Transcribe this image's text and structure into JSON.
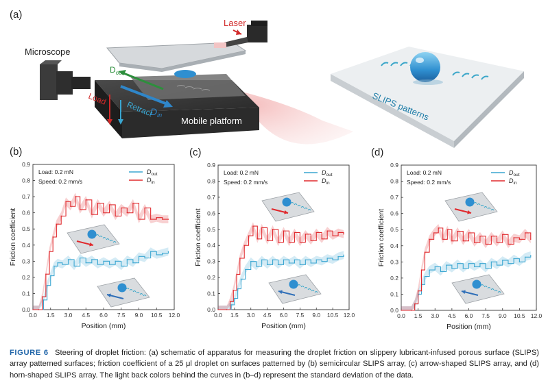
{
  "panel_a": {
    "label": "(a)",
    "microscope_label": "Microscope",
    "laser_label": "Laser",
    "dout_label": "D",
    "dout_sub": "out",
    "din_label": "D",
    "din_sub": "in",
    "load_label": "Load",
    "retract_label": "Retract",
    "platform_label": "Mobile platform",
    "slips_label": "SLIPS patterns"
  },
  "colors": {
    "out": "#3aa6d1",
    "in": "#e0282c",
    "caption_accent": "#1f64a8",
    "dout_arrow": "#2d8f3c"
  },
  "chart_data": [
    {
      "type": "line",
      "panel": "(b)",
      "xlabel": "Position (mm)",
      "ylabel": "Friction coefficient",
      "xlim": [
        0,
        12
      ],
      "ylim": [
        0,
        0.9
      ],
      "xticks": [
        "0.0",
        "1.5",
        "3.0",
        "4.5",
        "6.0",
        "7.5",
        "9.0",
        "10.5",
        "12.0"
      ],
      "yticks": [
        "0.0",
        "0.1",
        "0.2",
        "0.3",
        "0.4",
        "0.5",
        "0.6",
        "0.7",
        "0.8",
        "0.9"
      ],
      "annotation": [
        "Load: 0.2 mN",
        "Speed: 0.2 mm/s"
      ],
      "legend": [
        {
          "name": "D",
          "sub": "out",
          "color": "#3aa6d1"
        },
        {
          "name": "D",
          "sub": "in",
          "color": "#e0282c"
        }
      ],
      "series": [
        {
          "key": "out",
          "x": [
            0,
            0.5,
            0.9,
            1.2,
            1.5,
            1.8,
            2.1,
            2.5,
            3.0,
            3.5,
            4.0,
            4.5,
            5.0,
            5.5,
            6.0,
            6.5,
            7.0,
            7.5,
            8.0,
            8.5,
            9.0,
            9.5,
            10.0,
            10.5,
            11.0,
            11.5
          ],
          "y": [
            0,
            0,
            0.06,
            0.15,
            0.21,
            0.27,
            0.29,
            0.28,
            0.31,
            0.27,
            0.32,
            0.29,
            0.31,
            0.28,
            0.3,
            0.28,
            0.3,
            0.27,
            0.31,
            0.29,
            0.33,
            0.32,
            0.36,
            0.34,
            0.35,
            0.36
          ]
        },
        {
          "key": "in",
          "x": [
            0,
            0.5,
            0.8,
            1.1,
            1.4,
            1.7,
            2.0,
            2.4,
            2.8,
            3.2,
            3.6,
            4.0,
            4.5,
            5.0,
            5.5,
            6.0,
            6.5,
            7.0,
            7.5,
            8.0,
            8.5,
            9.0,
            9.5,
            10.0,
            10.5,
            11.0,
            11.5
          ],
          "y": [
            0,
            0,
            0.08,
            0.22,
            0.36,
            0.45,
            0.53,
            0.58,
            0.67,
            0.64,
            0.7,
            0.62,
            0.68,
            0.59,
            0.66,
            0.6,
            0.65,
            0.58,
            0.63,
            0.6,
            0.66,
            0.56,
            0.63,
            0.56,
            0.57,
            0.56,
            0.56
          ]
        }
      ]
    },
    {
      "type": "line",
      "panel": "(c)",
      "xlabel": "Position (mm)",
      "ylabel": "Friction coefficient",
      "xlim": [
        0,
        12
      ],
      "ylim": [
        0,
        0.9
      ],
      "xticks": [
        "0.0",
        "1.5",
        "3.0",
        "4.5",
        "6.0",
        "7.5",
        "9.0",
        "10.5",
        "12.0"
      ],
      "yticks": [
        "0.0",
        "0.1",
        "0.2",
        "0.3",
        "0.4",
        "0.5",
        "0.6",
        "0.7",
        "0.8",
        "0.9"
      ],
      "annotation": [
        "Load: 0.2 mN",
        "Speed: 0.2 mm/s"
      ],
      "legend": [
        {
          "name": "D",
          "sub": "out",
          "color": "#3aa6d1"
        },
        {
          "name": "D",
          "sub": "in",
          "color": "#e0282c"
        }
      ],
      "series": [
        {
          "key": "out",
          "x": [
            0,
            0.8,
            1.2,
            1.5,
            1.8,
            2.1,
            2.5,
            3.0,
            3.5,
            4.0,
            4.5,
            5.0,
            5.5,
            6.0,
            6.5,
            7.0,
            7.5,
            8.0,
            8.5,
            9.0,
            9.5,
            10.0,
            10.5,
            11.0,
            11.5
          ],
          "y": [
            0,
            0,
            0.03,
            0.07,
            0.13,
            0.19,
            0.25,
            0.3,
            0.27,
            0.31,
            0.28,
            0.31,
            0.28,
            0.31,
            0.29,
            0.31,
            0.28,
            0.31,
            0.29,
            0.31,
            0.3,
            0.32,
            0.31,
            0.33,
            0.34
          ]
        },
        {
          "key": "in",
          "x": [
            0,
            0.8,
            1.1,
            1.4,
            1.7,
            2.0,
            2.4,
            2.8,
            3.2,
            3.6,
            4.0,
            4.5,
            5.0,
            5.5,
            6.0,
            6.5,
            7.0,
            7.5,
            8.0,
            8.5,
            9.0,
            9.5,
            10.0,
            10.5,
            11.0,
            11.5
          ],
          "y": [
            0,
            0,
            0.05,
            0.12,
            0.22,
            0.32,
            0.4,
            0.46,
            0.52,
            0.44,
            0.51,
            0.43,
            0.5,
            0.42,
            0.49,
            0.42,
            0.48,
            0.42,
            0.47,
            0.43,
            0.48,
            0.44,
            0.49,
            0.46,
            0.48,
            0.47
          ]
        }
      ]
    },
    {
      "type": "line",
      "panel": "(d)",
      "xlabel": "Position (mm)",
      "ylabel": "Friction coefficient",
      "xlim": [
        0,
        12
      ],
      "ylim": [
        0,
        0.9
      ],
      "xticks": [
        "0.0",
        "1.5",
        "3.0",
        "4.5",
        "6.0",
        "7.5",
        "9.0",
        "10.5",
        "12.0"
      ],
      "yticks": [
        "0.0",
        "0.1",
        "0.2",
        "0.3",
        "0.4",
        "0.5",
        "0.6",
        "0.7",
        "0.8",
        "0.9"
      ],
      "annotation": [
        "Load: 0.2 mN",
        "Speed: 0.2 mm/s"
      ],
      "legend": [
        {
          "name": "D",
          "sub": "out",
          "color": "#3aa6d1"
        },
        {
          "name": "D",
          "sub": "in",
          "color": "#e0282c"
        }
      ],
      "series": [
        {
          "key": "out",
          "x": [
            0,
            0.9,
            1.2,
            1.5,
            1.8,
            2.1,
            2.5,
            3.0,
            3.5,
            4.0,
            4.5,
            5.0,
            5.5,
            6.0,
            6.5,
            7.0,
            7.5,
            8.0,
            8.5,
            9.0,
            9.5,
            10.0,
            10.5,
            11.0,
            11.5
          ],
          "y": [
            0,
            0,
            0.04,
            0.1,
            0.16,
            0.21,
            0.25,
            0.27,
            0.24,
            0.28,
            0.26,
            0.29,
            0.26,
            0.29,
            0.27,
            0.29,
            0.26,
            0.3,
            0.28,
            0.31,
            0.29,
            0.32,
            0.3,
            0.33,
            0.34
          ]
        },
        {
          "key": "in",
          "x": [
            0,
            0.9,
            1.2,
            1.5,
            1.8,
            2.1,
            2.5,
            2.9,
            3.3,
            3.7,
            4.1,
            4.5,
            5.0,
            5.5,
            6.0,
            6.5,
            7.0,
            7.5,
            8.0,
            8.5,
            9.0,
            9.5,
            10.0,
            10.5,
            11.0,
            11.5
          ],
          "y": [
            0,
            0,
            0.04,
            0.12,
            0.25,
            0.36,
            0.44,
            0.48,
            0.51,
            0.44,
            0.5,
            0.43,
            0.49,
            0.43,
            0.48,
            0.42,
            0.46,
            0.41,
            0.46,
            0.42,
            0.47,
            0.41,
            0.45,
            0.44,
            0.48,
            0.44
          ]
        }
      ]
    }
  ],
  "caption": {
    "figure_word": "FIGURE",
    "figure_number": "6",
    "text": "Steering of droplet friction: (a) schematic of apparatus for measuring the droplet friction on slippery lubricant-infused porous surface (SLIPS) array patterned surfaces; friction coefficient of a 25 μl droplet on surfaces patterned by (b) semicircular SLIPS array, (c) arrow-shaped SLIPS array, and (d) horn-shaped SLIPS array. The light back colors behind the curves in (b–d) represent the standard deviation of the data."
  }
}
